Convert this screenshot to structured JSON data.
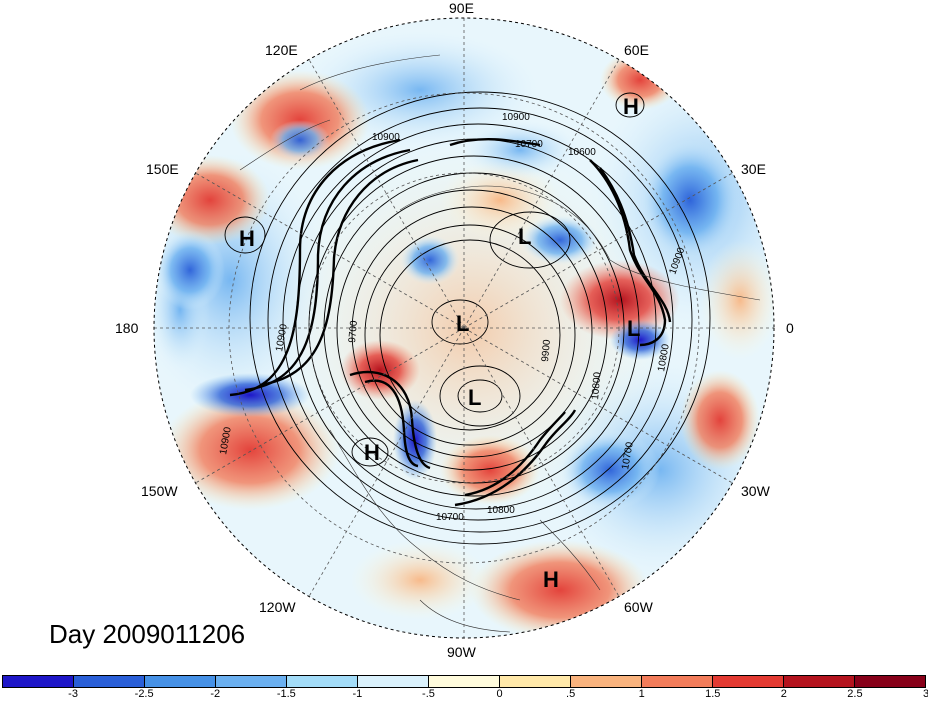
{
  "map": {
    "projection": "north-polar-stereographic",
    "field": "anomaly shading with geopotential height contours",
    "lon_labels": [
      {
        "text": "90E",
        "lon": 90
      },
      {
        "text": "60E",
        "lon": 60
      },
      {
        "text": "30E",
        "lon": 30
      },
      {
        "text": "0",
        "lon": 0
      },
      {
        "text": "30W",
        "lon": -30
      },
      {
        "text": "60W",
        "lon": -60
      },
      {
        "text": "90W",
        "lon": -90
      },
      {
        "text": "120W",
        "lon": -120
      },
      {
        "text": "150W",
        "lon": -150
      },
      {
        "text": "180",
        "lon": 180
      },
      {
        "text": "150E",
        "lon": 150
      },
      {
        "text": "120E",
        "lon": 120
      }
    ],
    "pressure_centers": [
      {
        "type": "H",
        "label": "H",
        "region": "northern Russia"
      },
      {
        "type": "H",
        "label": "H",
        "region": "north Pacific"
      },
      {
        "type": "L",
        "label": "L",
        "region": "Kara Sea"
      },
      {
        "type": "L",
        "label": "L",
        "region": "Arctic Ocean"
      },
      {
        "type": "L",
        "label": "L",
        "region": "northern Europe"
      },
      {
        "type": "L",
        "label": "L",
        "region": "Hudson Bay"
      },
      {
        "type": "H",
        "label": "H",
        "region": "western North America"
      },
      {
        "type": "H",
        "label": "H",
        "region": "South America"
      }
    ],
    "contour_labels": [
      "10900",
      "10700",
      "10600",
      "10900",
      "10900",
      "10900",
      "9700",
      "9900",
      "10800",
      "10700",
      "10700",
      "10800",
      "10900",
      "10800",
      "10900"
    ]
  },
  "title": "Day 2009011206",
  "colorbar": {
    "colors": [
      "#1e16c8",
      "#2a5fd8",
      "#4691e6",
      "#6bb0f0",
      "#a3dcf8",
      "#daf1fc",
      "#fffbdc",
      "#ffe8a9",
      "#f9b37e",
      "#f27c5a",
      "#e33a32",
      "#b4131e",
      "#870019"
    ],
    "ticks": [
      "-3",
      "-2.5",
      "-2",
      "-1.5",
      "-1",
      "-.5",
      "0",
      ".5",
      "1",
      "1.5",
      "2",
      "2.5",
      "3"
    ]
  }
}
